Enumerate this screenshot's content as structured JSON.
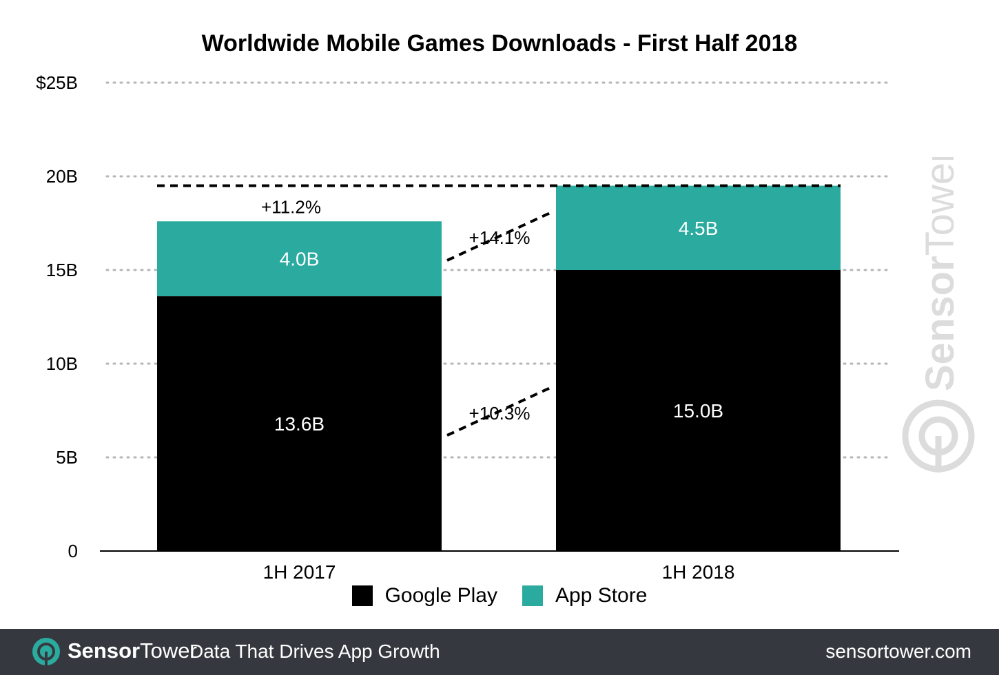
{
  "colors": {
    "google_play": "#000000",
    "app_store": "#2bab9f",
    "footer_bg": "#35393f",
    "watermark": "#dcdcdc"
  },
  "chart_data": {
    "type": "bar",
    "stacked": true,
    "title": "Worldwide Mobile Games Downloads - First Half 2018",
    "categories": [
      "1H 2017",
      "1H 2018"
    ],
    "series": [
      {
        "name": "Google Play",
        "values": [
          13.6,
          15.0
        ],
        "labels": [
          "13.6B",
          "15.0B"
        ]
      },
      {
        "name": "App Store",
        "values": [
          4.0,
          4.5
        ],
        "labels": [
          "4.0B",
          "4.5B"
        ]
      }
    ],
    "ylim": [
      0,
      25
    ],
    "yticks": [
      0,
      5,
      10,
      15,
      20,
      25
    ],
    "ytick_labels": [
      "0",
      "5B",
      "10B",
      "15B",
      "20B",
      "$25B"
    ],
    "grid": "dotted horizontal",
    "legend": "bottom-center",
    "annotations": [
      {
        "text": "+11.2%",
        "refers_to": "total"
      },
      {
        "text": "+14.1%",
        "refers_to": "App Store"
      },
      {
        "text": "+10.3%",
        "refers_to": "Google Play"
      }
    ]
  },
  "watermark": {
    "brand_a": "Sensor",
    "brand_b": "Tower"
  },
  "footer": {
    "brand_a": "Sensor",
    "brand_b": "Tower",
    "tagline": "Data That Drives App Growth",
    "url": "sensortower.com"
  }
}
